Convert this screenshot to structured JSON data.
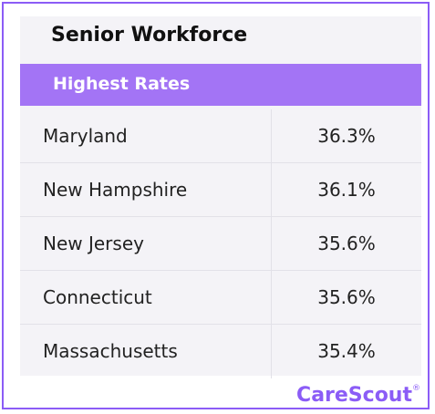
{
  "title": "Senior Workforce",
  "table": {
    "header": "Highest Rates",
    "rows": [
      [
        "Maryland",
        "36.3%"
      ],
      [
        "New Hampshire",
        "36.1%"
      ],
      [
        "New Jersey",
        "35.6%"
      ],
      [
        "Connecticut",
        "35.6%"
      ],
      [
        "Massachusetts",
        "35.4%"
      ]
    ]
  },
  "logo": {
    "text": "CareScout",
    "mark": "®"
  }
}
